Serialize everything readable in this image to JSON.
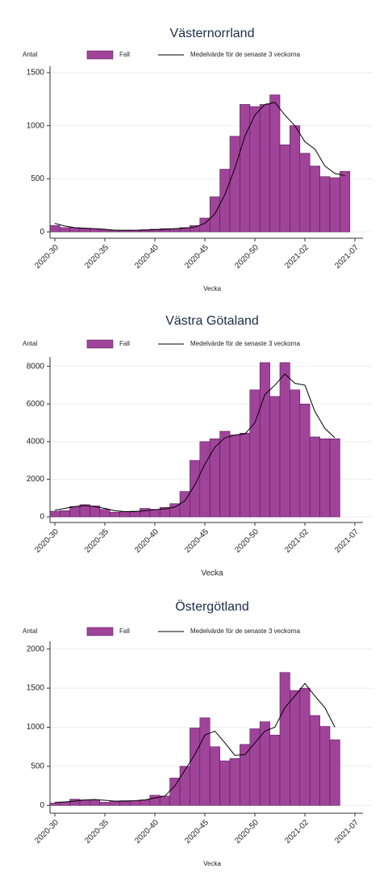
{
  "chart_data": [
    {
      "type": "bar",
      "title": "Västernorrland",
      "y_label": "Antal",
      "x_label": "Vecka",
      "legend": "top",
      "grid": true,
      "categories": [
        "2020-30",
        null,
        null,
        null,
        null,
        "2020-35",
        null,
        null,
        null,
        null,
        "2020-40",
        null,
        null,
        null,
        null,
        "2020-45",
        null,
        null,
        null,
        null,
        "2020-50",
        null,
        null,
        null,
        null,
        "2021-02",
        null,
        null,
        null,
        null,
        "2021-07"
      ],
      "series": [
        {
          "name": "Fall",
          "type": "bar",
          "color": "#a0449a",
          "values": [
            60,
            40,
            40,
            30,
            30,
            20,
            15,
            15,
            15,
            20,
            25,
            30,
            30,
            40,
            60,
            130,
            330,
            590,
            900,
            1200,
            1180,
            1200,
            1290,
            820,
            1000,
            740,
            620,
            520,
            510,
            570,
            null
          ]
        },
        {
          "name": "Medelvärde för de senaste 3 veckorna",
          "type": "line",
          "color": "#000000",
          "values": [
            80,
            55,
            40,
            35,
            30,
            25,
            15,
            15,
            15,
            17,
            20,
            25,
            30,
            35,
            45,
            80,
            170,
            350,
            600,
            900,
            1100,
            1200,
            1220,
            1100,
            1000,
            850,
            780,
            620,
            550,
            530,
            null
          ]
        }
      ],
      "ylim": [
        -60,
        1560
      ],
      "yticks": [
        0,
        500,
        1000,
        1500
      ]
    },
    {
      "type": "bar",
      "title": "Västra Götaland",
      "y_label": "Antal",
      "x_label": "Vecka",
      "legend": "top",
      "grid": true,
      "categories": [
        "2020-30",
        null,
        null,
        null,
        null,
        "2020-35",
        null,
        null,
        null,
        null,
        "2020-40",
        null,
        null,
        null,
        null,
        "2020-45",
        null,
        null,
        null,
        null,
        "2020-50",
        null,
        null,
        null,
        null,
        "2021-02",
        null,
        null,
        null,
        null,
        "2021-07"
      ],
      "series": [
        {
          "name": "Fall",
          "type": "bar",
          "color": "#a0449a",
          "values": [
            300,
            330,
            550,
            650,
            580,
            400,
            250,
            280,
            300,
            450,
            400,
            500,
            700,
            1350,
            3000,
            4000,
            4150,
            4550,
            4350,
            4450,
            6750,
            8200,
            6400,
            8200,
            6750,
            6000,
            4250,
            4150,
            4150,
            null,
            null
          ]
        },
        {
          "name": "Medelvärde för de senaste 3 veckorna",
          "type": "line",
          "color": "#000000",
          "values": [
            350,
            450,
            550,
            600,
            550,
            450,
            330,
            280,
            280,
            330,
            380,
            420,
            520,
            850,
            1700,
            2800,
            3700,
            4200,
            4350,
            4400,
            5000,
            6500,
            7000,
            7600,
            7100,
            7000,
            5600,
            4700,
            4200,
            null,
            null
          ]
        }
      ],
      "ylim": [
        -300,
        8500
      ],
      "yticks": [
        0,
        2000,
        4000,
        6000,
        8000
      ]
    },
    {
      "type": "bar",
      "title": "Östergötland",
      "y_label": "Antal",
      "x_label": "Vecka",
      "legend": "top",
      "grid": true,
      "categories": [
        "2020-30",
        null,
        null,
        null,
        null,
        "2020-35",
        null,
        null,
        null,
        null,
        "2020-40",
        null,
        null,
        null,
        null,
        "2020-45",
        null,
        null,
        null,
        null,
        "2020-50",
        null,
        null,
        null,
        null,
        "2021-02",
        null,
        null,
        null,
        null,
        "2021-07"
      ],
      "series": [
        {
          "name": "Fall",
          "type": "bar",
          "color": "#a0449a",
          "values": [
            30,
            40,
            80,
            70,
            70,
            40,
            50,
            60,
            60,
            70,
            130,
            120,
            350,
            500,
            990,
            1120,
            750,
            570,
            600,
            780,
            980,
            1070,
            900,
            1700,
            1470,
            1500,
            1150,
            1010,
            840,
            null,
            null
          ]
        },
        {
          "name": "Medelvärde för de senaste 3 veckorna",
          "type": "line",
          "color": "#000000",
          "values": [
            40,
            45,
            55,
            70,
            75,
            65,
            55,
            55,
            60,
            70,
            95,
            120,
            250,
            450,
            650,
            900,
            950,
            800,
            640,
            650,
            800,
            950,
            1000,
            1250,
            1400,
            1560,
            1400,
            1250,
            1000,
            null,
            null
          ]
        }
      ],
      "ylim": [
        -100,
        2100
      ],
      "yticks": [
        0,
        500,
        1000,
        1500,
        2000
      ]
    }
  ]
}
